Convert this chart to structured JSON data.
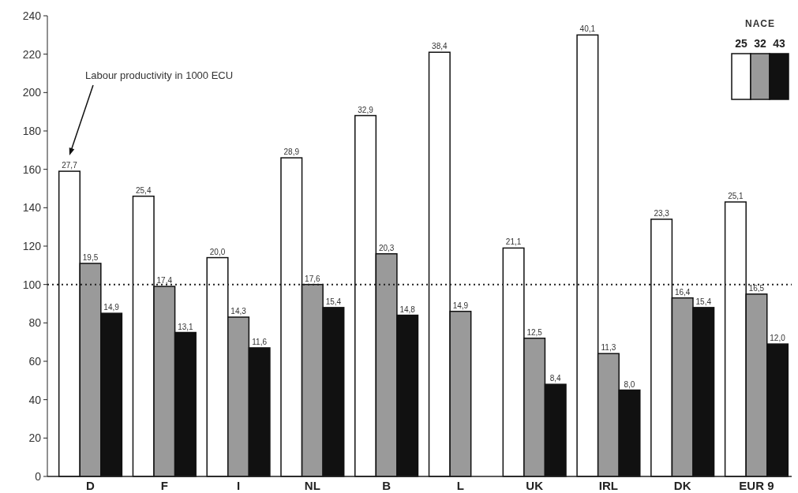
{
  "chart_data": {
    "type": "bar",
    "categories": [
      "D",
      "F",
      "I",
      "NL",
      "B",
      "L",
      "UK",
      "IRL",
      "DK",
      "EUR 9"
    ],
    "series": [
      {
        "name": "25",
        "color": "#ffffff",
        "values": [
          159,
          146,
          114,
          166,
          188,
          221,
          119,
          230,
          134,
          143
        ]
      },
      {
        "name": "32",
        "color": "#9a9a9a",
        "values": [
          111,
          99,
          83,
          100,
          116,
          86,
          72,
          64,
          93,
          95
        ]
      },
      {
        "name": "43",
        "color": "#111111",
        "values": [
          85,
          75,
          67,
          88,
          84,
          null,
          48,
          45,
          88,
          69
        ]
      }
    ],
    "ylim": [
      0,
      240
    ],
    "yticks": [
      0,
      20,
      40,
      60,
      80,
      100,
      120,
      140,
      160,
      180,
      200,
      220,
      240
    ],
    "legend": "top right",
    "legend_title": "NACE",
    "ref_lines": [
      {
        "axis": "y",
        "value": 100,
        "color": "#222222",
        "line_style": "dotted"
      }
    ],
    "annotations": [
      "Labour productivity in 1000 ECU",
      "27,7",
      "19,5",
      "14,9",
      "25,4",
      "17,4",
      "13,1",
      "20,0",
      "14,3",
      "11,6",
      "28,9",
      "17,6",
      "15,4",
      "32,9",
      "20,3",
      "14,8",
      "38,4",
      "14,9",
      "21,1",
      "12,5",
      "8,4",
      "40,1",
      "11,3",
      "8,0",
      "23,3",
      "16,4",
      "15,4",
      "25,1",
      "16,5",
      "12,0"
    ]
  }
}
